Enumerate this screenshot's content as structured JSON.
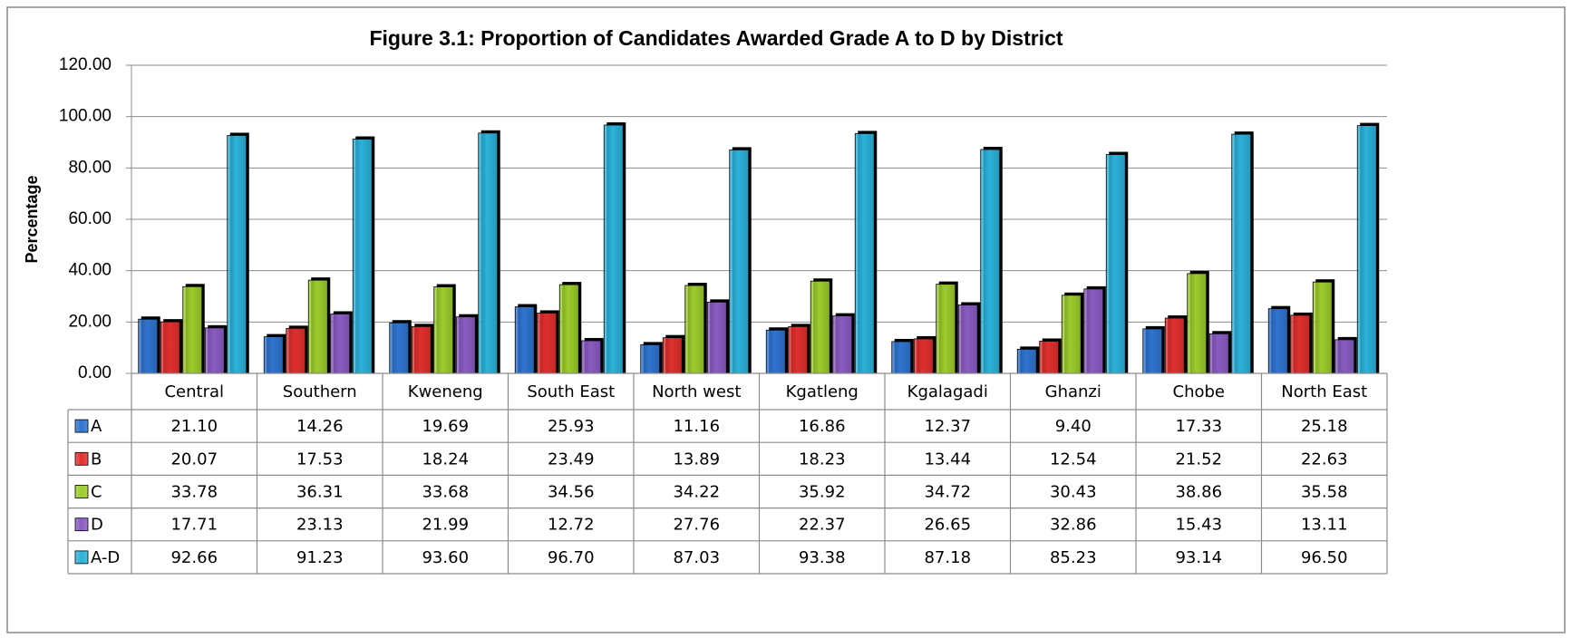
{
  "chart_data": {
    "type": "bar",
    "title": "Figure 3.1: Proportion of Candidates Awarded Grade A to D by District",
    "y_label": "Percentage",
    "categories": [
      "Central",
      "Southern",
      "Kweneng",
      "South East",
      "North west",
      "Kgatleng",
      "Kgalagadi",
      "Ghanzi",
      "Chobe",
      "North East"
    ],
    "series": [
      {
        "name": "A",
        "color": "#2f74cf",
        "values": [
          21.1,
          14.26,
          19.69,
          25.93,
          11.16,
          16.86,
          12.37,
          9.4,
          17.33,
          25.18
        ],
        "value_labels": [
          "21.10",
          "14.26",
          "19.69",
          "25.93",
          "11.16",
          "16.86",
          "12.37",
          "9.40",
          "17.33",
          "25.18"
        ]
      },
      {
        "name": "B",
        "color": "#e0302e",
        "values": [
          20.07,
          17.53,
          18.24,
          23.49,
          13.89,
          18.23,
          13.44,
          12.54,
          21.52,
          22.63
        ],
        "value_labels": [
          "20.07",
          "17.53",
          "18.24",
          "23.49",
          "13.89",
          "18.23",
          "13.44",
          "12.54",
          "21.52",
          "22.63"
        ]
      },
      {
        "name": "C",
        "color": "#9ccc2c",
        "values": [
          33.78,
          36.31,
          33.68,
          34.56,
          34.22,
          35.92,
          34.72,
          30.43,
          38.86,
          35.58
        ],
        "value_labels": [
          "33.78",
          "36.31",
          "33.68",
          "34.56",
          "34.22",
          "35.92",
          "34.72",
          "30.43",
          "38.86",
          "35.58"
        ]
      },
      {
        "name": "D",
        "color": "#8a5cc2",
        "values": [
          17.71,
          23.13,
          21.99,
          12.72,
          27.76,
          22.37,
          26.65,
          32.86,
          15.43,
          13.11
        ],
        "value_labels": [
          "17.71",
          "23.13",
          "21.99",
          "12.72",
          "27.76",
          "22.37",
          "26.65",
          "32.86",
          "15.43",
          "13.11"
        ]
      },
      {
        "name": "A-D",
        "color": "#2cb2da",
        "values": [
          92.66,
          91.23,
          93.6,
          96.7,
          87.03,
          93.38,
          87.18,
          85.23,
          93.14,
          96.5
        ],
        "value_labels": [
          "92.66",
          "91.23",
          "93.60",
          "96.70",
          "87.03",
          "93.38",
          "87.18",
          "85.23",
          "93.14",
          "96.50"
        ]
      }
    ],
    "ylim": [
      0,
      120
    ],
    "yticks": [
      {
        "value": 0,
        "label": "0.00"
      },
      {
        "value": 20,
        "label": "20.00"
      },
      {
        "value": 40,
        "label": "40.00"
      },
      {
        "value": 60,
        "label": "60.00"
      },
      {
        "value": 80,
        "label": "80.00"
      },
      {
        "value": 100,
        "label": "100.00"
      },
      {
        "value": 120,
        "label": "120.00"
      }
    ],
    "grid": true
  }
}
